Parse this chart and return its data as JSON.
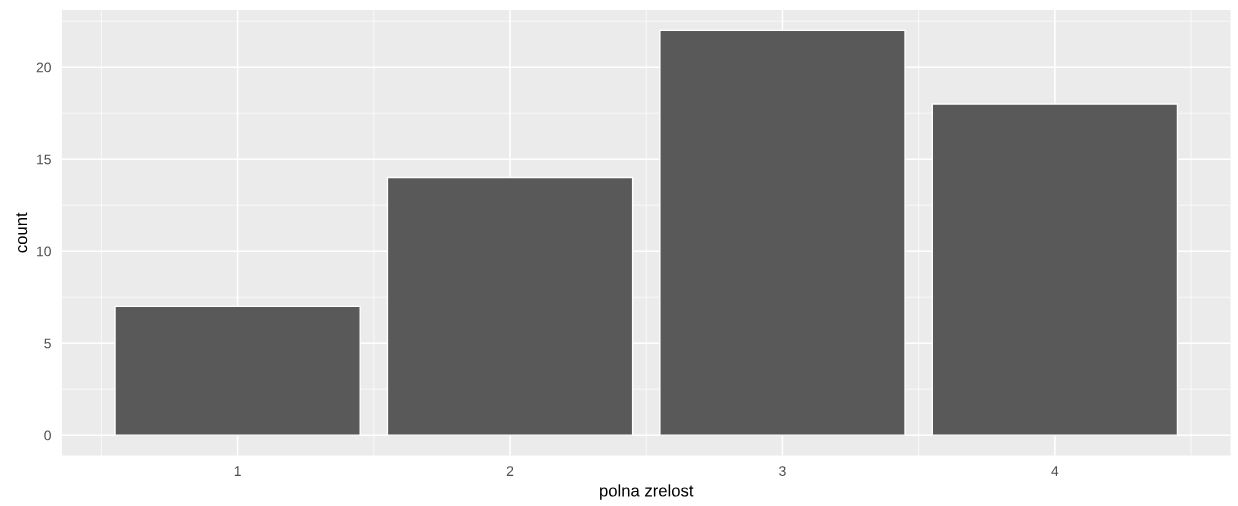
{
  "chart_data": {
    "type": "bar",
    "xlabel": "polna zrelost",
    "ylabel": "count",
    "x": [
      1,
      2,
      3,
      4
    ],
    "values": [
      7,
      14,
      22,
      18
    ],
    "color": "#595959",
    "xlim": [
      0.355,
      4.645
    ],
    "xticks": [
      1,
      2,
      3,
      4
    ],
    "ylim": [
      -1.1,
      23.1
    ],
    "yticks": [
      0,
      5,
      10,
      15,
      20
    ],
    "grid": true
  }
}
